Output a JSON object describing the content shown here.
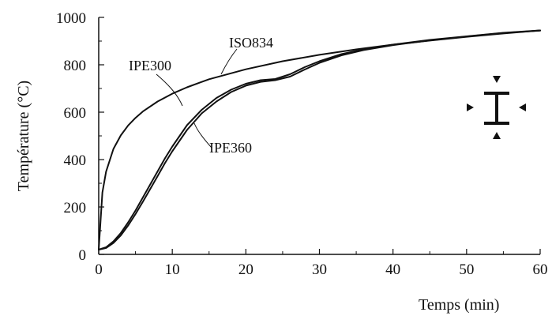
{
  "chart_data": {
    "type": "line",
    "title": "",
    "xlabel": "Temps (min)",
    "ylabel": "Température  (°C)",
    "xlim": [
      0,
      60
    ],
    "ylim": [
      0,
      1000
    ],
    "x_ticks": [
      "0",
      "10",
      "20",
      "30",
      "40",
      "50",
      "60"
    ],
    "y_ticks": [
      "0",
      "200",
      "400",
      "600",
      "800",
      "1000"
    ],
    "grid": false,
    "legend": "none",
    "line_color": "#111111",
    "series": [
      {
        "name": "ISO834",
        "x": [
          0,
          0.5,
          1,
          2,
          3,
          4,
          5,
          6,
          8,
          10,
          12,
          15,
          20,
          25,
          30,
          35,
          40,
          45,
          50,
          55,
          60
        ],
        "y": [
          20,
          261,
          349,
          445,
          502,
          544,
          576,
          603,
          645,
          678,
          705,
          739,
          781,
          815,
          842,
          865,
          885,
          902,
          918,
          932,
          945
        ]
      },
      {
        "name": "IPE300",
        "x": [
          0,
          1,
          2,
          3,
          4,
          5,
          6,
          7,
          8,
          9,
          10,
          12,
          14,
          16,
          18,
          20,
          22,
          24,
          26,
          28,
          30,
          33,
          36,
          40,
          45,
          50,
          55,
          60
        ],
        "y": [
          20,
          30,
          55,
          90,
          135,
          185,
          240,
          295,
          350,
          405,
          455,
          545,
          610,
          660,
          695,
          720,
          735,
          740,
          760,
          790,
          815,
          845,
          865,
          885,
          905,
          920,
          935,
          945
        ]
      },
      {
        "name": "IPE360",
        "x": [
          0,
          1,
          2,
          3,
          4,
          5,
          6,
          7,
          8,
          9,
          10,
          12,
          14,
          16,
          18,
          20,
          22,
          24,
          26,
          28,
          30,
          33,
          36,
          40,
          45,
          50,
          55,
          60
        ],
        "y": [
          20,
          27,
          48,
          80,
          122,
          170,
          222,
          276,
          330,
          385,
          435,
          525,
          595,
          645,
          685,
          712,
          728,
          735,
          750,
          780,
          808,
          840,
          862,
          883,
          903,
          919,
          934,
          944
        ]
      }
    ],
    "annotations": [
      "ISO834",
      "IPE300",
      "IPE360"
    ]
  }
}
